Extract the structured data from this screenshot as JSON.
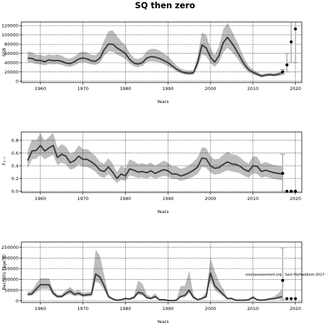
{
  "figure_title": "SQ then zero",
  "watermark": "stockassessment.org : Sam-ftb/haddock-2017-",
  "chart_data": [
    {
      "type": "line",
      "ylabel": "SSB",
      "xlabel": "Years",
      "xlim": [
        1955.5,
        2021.5
      ],
      "ylim": [
        -3000,
        128000
      ],
      "xticks": [
        1960,
        1970,
        1980,
        1990,
        2000,
        2010,
        2020
      ],
      "yticks": [
        0,
        20000,
        40000,
        60000,
        80000,
        100000,
        120000
      ],
      "grid": true,
      "x": [
        1957,
        1958,
        1959,
        1960,
        1961,
        1962,
        1963,
        1964,
        1965,
        1966,
        1967,
        1968,
        1969,
        1970,
        1971,
        1972,
        1973,
        1974,
        1975,
        1976,
        1977,
        1978,
        1979,
        1980,
        1981,
        1982,
        1983,
        1984,
        1985,
        1986,
        1987,
        1988,
        1989,
        1990,
        1991,
        1992,
        1993,
        1994,
        1995,
        1996,
        1997,
        1998,
        1999,
        2000,
        2001,
        2002,
        2003,
        2004,
        2005,
        2006,
        2007,
        2008,
        2009,
        2010,
        2011,
        2012,
        2013,
        2014,
        2015,
        2016,
        2017
      ],
      "series": [
        {
          "values": [
            50000,
            49000,
            45000,
            45000,
            42000,
            46000,
            44000,
            45000,
            43000,
            39000,
            38000,
            42000,
            48000,
            50000,
            48000,
            44000,
            43000,
            50000,
            68000,
            80000,
            80000,
            72000,
            66000,
            60000,
            47000,
            39000,
            37000,
            40000,
            50000,
            53000,
            52000,
            49000,
            45000,
            40000,
            33000,
            26000,
            21000,
            18000,
            17000,
            18000,
            40000,
            78000,
            72000,
            52000,
            41000,
            55000,
            83000,
            95000,
            83000,
            68000,
            52000,
            36000,
            25000,
            19000,
            15000,
            11000,
            13000,
            14000,
            13000,
            15000,
            18000
          ],
          "lower": [
            40000,
            40000,
            37000,
            36000,
            34000,
            37000,
            36000,
            37000,
            35000,
            32000,
            31000,
            34000,
            39000,
            41000,
            39000,
            36000,
            35000,
            40000,
            55000,
            64000,
            64000,
            58000,
            53000,
            48000,
            38000,
            32000,
            30000,
            33000,
            41000,
            43000,
            42000,
            40000,
            37000,
            32000,
            27000,
            21000,
            17000,
            14000,
            13000,
            14000,
            30000,
            58000,
            54000,
            39000,
            31000,
            41000,
            62000,
            72000,
            64000,
            53000,
            40000,
            28000,
            19000,
            15000,
            11000,
            8000,
            10000,
            11000,
            10000,
            11000,
            13000
          ],
          "upper": [
            64000,
            62000,
            57000,
            57000,
            54000,
            58000,
            56000,
            58000,
            55000,
            50000,
            49000,
            53000,
            61000,
            64000,
            62000,
            57000,
            56000,
            65000,
            88000,
            108000,
            110000,
            98000,
            86000,
            78000,
            61000,
            50000,
            48000,
            52000,
            65000,
            70000,
            70000,
            66000,
            60000,
            54000,
            44000,
            34000,
            27000,
            24000,
            23000,
            24000,
            55000,
            105000,
            100000,
            72000,
            56000,
            76000,
            112000,
            126000,
            110000,
            90000,
            70000,
            48000,
            33000,
            25000,
            20000,
            15000,
            17000,
            18000,
            17000,
            19000,
            24000
          ]
        }
      ],
      "points": {
        "x": [
          2017,
          2018,
          2019,
          2020
        ],
        "y": [
          20000,
          35000,
          85000,
          113000
        ]
      },
      "whiskers": [
        {
          "x": 2017,
          "lo": 15000,
          "hi": 25000
        },
        {
          "x": 2018,
          "lo": 20000,
          "hi": 60000
        },
        {
          "x": 2019,
          "lo": 40000,
          "hi": 160000
        },
        {
          "x": 2020,
          "lo": 40000,
          "hi": 200000
        }
      ]
    },
    {
      "type": "line",
      "ylabel": "F₃₋₇",
      "xlabel": "Years",
      "xlim": [
        1955.5,
        2021.5
      ],
      "ylim": [
        -0.02,
        0.93
      ],
      "xticks": [
        1960,
        1970,
        1980,
        1990,
        2000,
        2010,
        2020
      ],
      "yticks": [
        0.0,
        0.2,
        0.4,
        0.6,
        0.8
      ],
      "grid": true,
      "x": [
        1957,
        1958,
        1959,
        1960,
        1961,
        1962,
        1963,
        1964,
        1965,
        1966,
        1967,
        1968,
        1969,
        1970,
        1971,
        1972,
        1973,
        1974,
        1975,
        1976,
        1977,
        1978,
        1979,
        1980,
        1981,
        1982,
        1983,
        1984,
        1985,
        1986,
        1987,
        1988,
        1989,
        1990,
        1991,
        1992,
        1993,
        1994,
        1995,
        1996,
        1997,
        1998,
        1999,
        2000,
        2001,
        2002,
        2003,
        2004,
        2005,
        2006,
        2007,
        2008,
        2009,
        2010,
        2011,
        2012,
        2013,
        2014,
        2015,
        2016,
        2017
      ],
      "series": [
        {
          "values": [
            0.48,
            0.63,
            0.64,
            0.72,
            0.63,
            0.68,
            0.72,
            0.53,
            0.58,
            0.55,
            0.45,
            0.48,
            0.55,
            0.5,
            0.5,
            0.46,
            0.41,
            0.33,
            0.31,
            0.38,
            0.3,
            0.2,
            0.27,
            0.24,
            0.35,
            0.33,
            0.3,
            0.31,
            0.29,
            0.32,
            0.28,
            0.31,
            0.34,
            0.32,
            0.27,
            0.27,
            0.24,
            0.26,
            0.29,
            0.33,
            0.38,
            0.52,
            0.51,
            0.4,
            0.36,
            0.37,
            0.42,
            0.46,
            0.43,
            0.42,
            0.39,
            0.34,
            0.31,
            0.4,
            0.39,
            0.31,
            0.33,
            0.31,
            0.29,
            0.28,
            0.27
          ],
          "lower": [
            0.36,
            0.5,
            0.51,
            0.57,
            0.5,
            0.54,
            0.57,
            0.41,
            0.45,
            0.42,
            0.34,
            0.36,
            0.42,
            0.38,
            0.38,
            0.35,
            0.3,
            0.23,
            0.21,
            0.27,
            0.2,
            0.13,
            0.18,
            0.16,
            0.25,
            0.23,
            0.21,
            0.22,
            0.2,
            0.23,
            0.2,
            0.22,
            0.24,
            0.23,
            0.19,
            0.19,
            0.16,
            0.18,
            0.2,
            0.23,
            0.27,
            0.38,
            0.37,
            0.29,
            0.26,
            0.27,
            0.3,
            0.33,
            0.31,
            0.3,
            0.28,
            0.24,
            0.21,
            0.28,
            0.27,
            0.21,
            0.23,
            0.21,
            0.19,
            0.18,
            0.17
          ],
          "upper": [
            0.64,
            0.81,
            0.8,
            0.91,
            0.79,
            0.85,
            0.92,
            0.68,
            0.74,
            0.7,
            0.59,
            0.62,
            0.72,
            0.66,
            0.66,
            0.61,
            0.55,
            0.46,
            0.43,
            0.52,
            0.43,
            0.3,
            0.4,
            0.36,
            0.5,
            0.47,
            0.43,
            0.44,
            0.42,
            0.45,
            0.4,
            0.44,
            0.48,
            0.45,
            0.39,
            0.39,
            0.35,
            0.37,
            0.41,
            0.46,
            0.53,
            0.69,
            0.68,
            0.55,
            0.5,
            0.51,
            0.57,
            0.62,
            0.58,
            0.57,
            0.53,
            0.47,
            0.43,
            0.55,
            0.54,
            0.43,
            0.46,
            0.43,
            0.41,
            0.4,
            0.39
          ]
        }
      ],
      "points": {
        "x": [
          2017,
          2018,
          2019,
          2020
        ],
        "y": [
          0.28,
          0.0,
          0.0,
          0.0
        ]
      },
      "whiskers": [
        {
          "x": 2017,
          "lo": 0.0,
          "hi": 0.58
        }
      ]
    },
    {
      "type": "line",
      "ylabel": "Recruits (age 0)",
      "xlabel": "Years",
      "xlim": [
        1955.5,
        2021.5
      ],
      "ylim": [
        -8000,
        275000
      ],
      "xticks": [
        1960,
        1970,
        1980,
        1990,
        2000,
        2010,
        2020
      ],
      "yticks": [
        0,
        50000,
        100000,
        150000,
        200000,
        250000
      ],
      "grid": true,
      "x": [
        1957,
        1958,
        1959,
        1960,
        1961,
        1962,
        1963,
        1964,
        1965,
        1966,
        1967,
        1968,
        1969,
        1970,
        1971,
        1972,
        1973,
        1974,
        1975,
        1976,
        1977,
        1978,
        1979,
        1980,
        1981,
        1982,
        1983,
        1984,
        1985,
        1986,
        1987,
        1988,
        1989,
        1990,
        1991,
        1992,
        1993,
        1994,
        1995,
        1996,
        1997,
        1998,
        1999,
        2000,
        2001,
        2002,
        2003,
        2004,
        2005,
        2006,
        2007,
        2008,
        2009,
        2010,
        2011,
        2012,
        2013,
        2014,
        2015,
        2016,
        2017
      ],
      "series": [
        {
          "values": [
            30000,
            33000,
            55000,
            75000,
            75000,
            75000,
            35000,
            20000,
            20000,
            35000,
            45000,
            30000,
            35000,
            25000,
            28000,
            30000,
            125000,
            110000,
            70000,
            20000,
            8000,
            3000,
            5000,
            10000,
            8000,
            15000,
            40000,
            35000,
            15000,
            10000,
            20000,
            5000,
            5000,
            2000,
            1000,
            3000,
            20000,
            25000,
            50000,
            15000,
            5000,
            10000,
            20000,
            130000,
            70000,
            50000,
            30000,
            10000,
            10000,
            3000,
            3000,
            3000,
            5000,
            15000,
            5000,
            3000,
            5000,
            8000,
            10000,
            15000,
            20000
          ],
          "lower": [
            22000,
            24000,
            40000,
            55000,
            55000,
            55000,
            25000,
            14000,
            14000,
            25000,
            32000,
            21000,
            25000,
            18000,
            20000,
            21000,
            90000,
            80000,
            50000,
            14000,
            5000,
            2000,
            3000,
            7000,
            5000,
            10000,
            28000,
            24000,
            10000,
            7000,
            14000,
            3000,
            3000,
            1000,
            500,
            2000,
            14000,
            17000,
            35000,
            10000,
            3000,
            7000,
            14000,
            95000,
            50000,
            35000,
            21000,
            7000,
            7000,
            2000,
            2000,
            2000,
            3000,
            10000,
            3000,
            2000,
            3000,
            5000,
            6000,
            9000,
            10000
          ],
          "upper": [
            42000,
            47000,
            80000,
            105000,
            105000,
            105000,
            50000,
            28000,
            28000,
            50000,
            65000,
            43000,
            50000,
            36000,
            40000,
            43000,
            240000,
            210000,
            120000,
            30000,
            14000,
            6000,
            9000,
            16000,
            13000,
            24000,
            95000,
            80000,
            30000,
            18000,
            35000,
            9000,
            9000,
            4000,
            2000,
            6000,
            70000,
            70000,
            140000,
            30000,
            9000,
            16000,
            40000,
            200000,
            140000,
            90000,
            55000,
            16000,
            16000,
            5000,
            5000,
            5000,
            9000,
            24000,
            9000,
            5000,
            9000,
            14000,
            20000,
            35000,
            60000
          ]
        }
      ],
      "points": {
        "x": [
          2017,
          2018,
          2019,
          2020
        ],
        "y": [
          95000,
          10000,
          10000,
          10000
        ]
      },
      "whiskers": [
        {
          "x": 2017,
          "lo": 5000,
          "hi": 248000
        }
      ]
    }
  ],
  "panels": [
    {
      "ylabel": "SSB",
      "xlabel": "Years",
      "xtick_labels": [
        "1960",
        "1970",
        "1980",
        "1990",
        "2000",
        "2010",
        "2020"
      ],
      "ytick_labels": [
        "0",
        "20000",
        "40000",
        "60000",
        "80000",
        "100000",
        "120000"
      ]
    },
    {
      "ylabel": "F₃₋₇",
      "xlabel": "Years",
      "xtick_labels": [
        "1960",
        "1970",
        "1980",
        "1990",
        "2000",
        "2010",
        "2020"
      ],
      "ytick_labels": [
        "0.0",
        "0.2",
        "0.4",
        "0.6",
        "0.8"
      ]
    },
    {
      "ylabel": "Recruits (age 0)",
      "xlabel": "Years",
      "xtick_labels": [
        "1960",
        "1970",
        "1980",
        "1990",
        "2000",
        "2010",
        "2020"
      ],
      "ytick_labels": [
        "0",
        "50000",
        "100000",
        "150000",
        "200000",
        "250000"
      ]
    }
  ],
  "colors": {
    "line": "#3a3a3a",
    "band": "#bdbdbd",
    "point": "#000000",
    "whisker": "#b0b0b0",
    "grid": "#000000"
  }
}
